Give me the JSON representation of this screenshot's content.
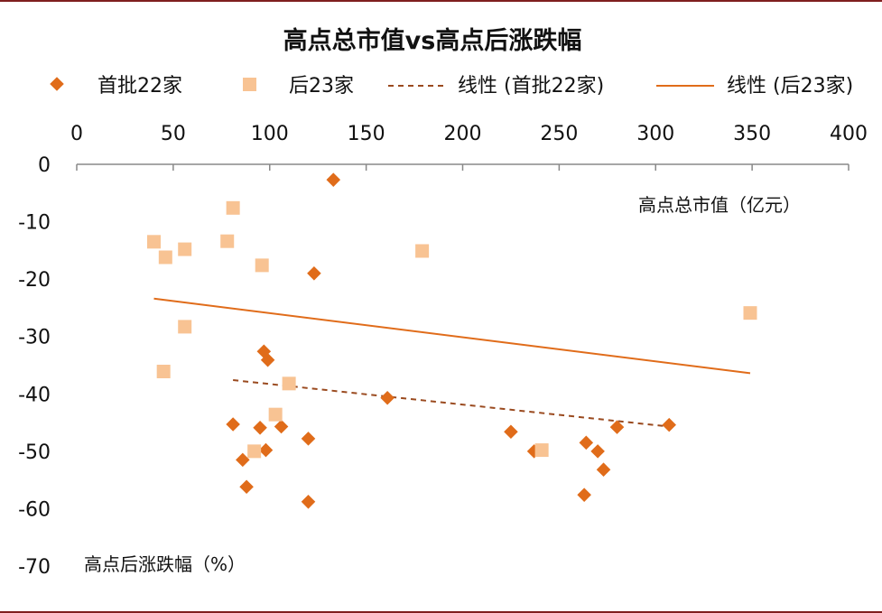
{
  "chart_data": {
    "type": "scatter",
    "title": "高点总市值vs高点后涨跌幅",
    "xlabel": "高点总市值（亿元）",
    "ylabel": "高点后涨跌幅（%）",
    "xlim": [
      0,
      400
    ],
    "ylim": [
      -70,
      0
    ],
    "x_ticks": [
      0,
      50,
      100,
      150,
      200,
      250,
      300,
      350,
      400
    ],
    "y_ticks": [
      0,
      -10,
      -20,
      -30,
      -40,
      -50,
      -60,
      -70
    ],
    "x_tick_labels": [
      "0",
      "50",
      "100",
      "150",
      "200",
      "250",
      "300",
      "350",
      "400"
    ],
    "y_tick_labels": [
      "0",
      "-10",
      "-20",
      "-30",
      "-40",
      "-50",
      "-60",
      "-70"
    ],
    "x_axis_position": "top",
    "grid": false,
    "legend": "top",
    "series": [
      {
        "name": "首批22家",
        "marker": "diamond",
        "color": "#e06c1a",
        "points": [
          {
            "x": 133,
            "y": -2.7
          },
          {
            "x": 123,
            "y": -19
          },
          {
            "x": 97,
            "y": -32.6
          },
          {
            "x": 99,
            "y": -34.1
          },
          {
            "x": 161,
            "y": -40.7
          },
          {
            "x": 81,
            "y": -45.3
          },
          {
            "x": 95,
            "y": -45.9
          },
          {
            "x": 106,
            "y": -45.7
          },
          {
            "x": 120,
            "y": -47.8
          },
          {
            "x": 98,
            "y": -49.8
          },
          {
            "x": 86,
            "y": -51.5
          },
          {
            "x": 88,
            "y": -56.2
          },
          {
            "x": 120,
            "y": -58.8
          },
          {
            "x": 225,
            "y": -46.6
          },
          {
            "x": 237,
            "y": -50
          },
          {
            "x": 264,
            "y": -48.5
          },
          {
            "x": 270,
            "y": -50
          },
          {
            "x": 273,
            "y": -53.2
          },
          {
            "x": 263,
            "y": -57.6
          },
          {
            "x": 280,
            "y": -45.8
          },
          {
            "x": 307,
            "y": -45.4
          }
        ]
      },
      {
        "name": "后23家",
        "marker": "square",
        "color": "#f8c393",
        "points": [
          {
            "x": 81,
            "y": -7.6
          },
          {
            "x": 40,
            "y": -13.5
          },
          {
            "x": 46,
            "y": -16.2
          },
          {
            "x": 56,
            "y": -14.8
          },
          {
            "x": 78,
            "y": -13.4
          },
          {
            "x": 96,
            "y": -17.6
          },
          {
            "x": 179,
            "y": -15.1
          },
          {
            "x": 56,
            "y": -28.3
          },
          {
            "x": 45,
            "y": -36.1
          },
          {
            "x": 110,
            "y": -38.2
          },
          {
            "x": 103,
            "y": -43.6
          },
          {
            "x": 92,
            "y": -50
          },
          {
            "x": 241,
            "y": -49.8
          },
          {
            "x": 349,
            "y": -25.9
          }
        ]
      }
    ],
    "trendlines": [
      {
        "name": "线性 (首批22家)",
        "style": "dashed",
        "color": "#9a4a1f",
        "x": [
          81,
          307
        ],
        "y": [
          -37.6,
          -45.7
        ]
      },
      {
        "name": "线性 (后23家)",
        "style": "solid",
        "color": "#e06c1a",
        "x": [
          40,
          349
        ],
        "y": [
          -23.4,
          -36.4
        ]
      }
    ]
  }
}
